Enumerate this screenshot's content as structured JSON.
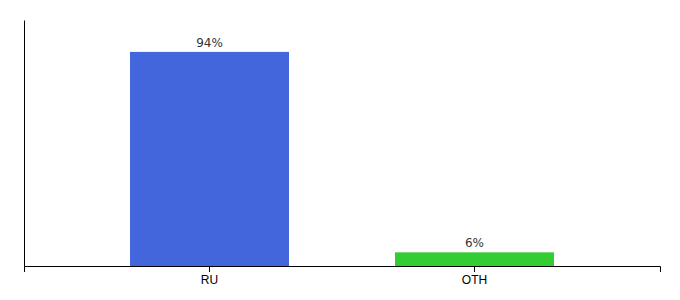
{
  "chart_data": {
    "type": "bar",
    "categories": [
      "RU",
      "OTH"
    ],
    "values": [
      94,
      6
    ],
    "value_labels": [
      "94%",
      "6%"
    ],
    "colors": [
      "#4466dd",
      "#33cc33"
    ],
    "ylim": [
      0,
      108
    ],
    "data_labels": true,
    "tick_labels": "x",
    "grid": false
  }
}
